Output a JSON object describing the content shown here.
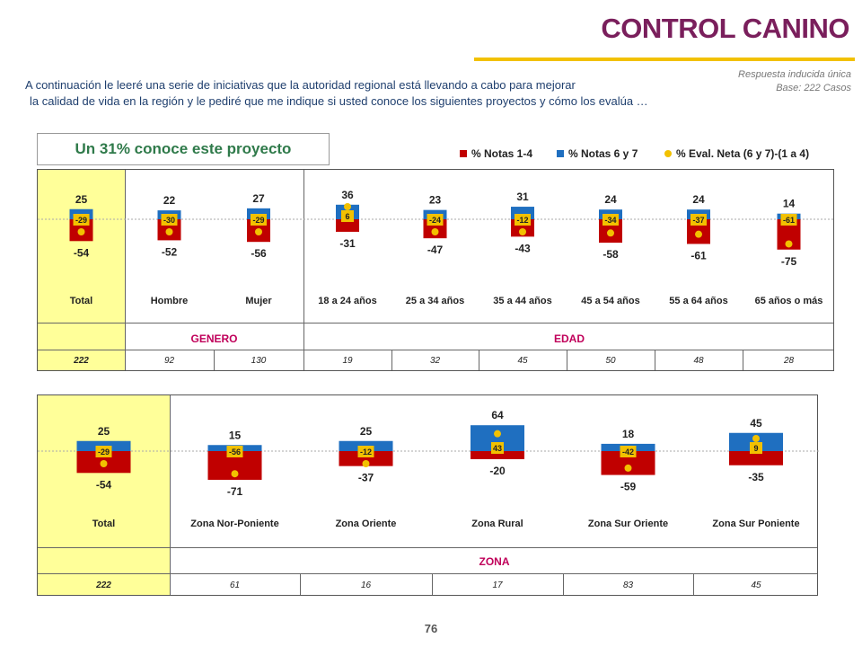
{
  "header": {
    "title": "CONTROL CANINO",
    "note_line1": "Respuesta inducida única",
    "note_line2": "Base: 222 Casos",
    "intro_line1": "A continuación le leeré una serie de iniciativas que la autoridad regional está llevando a cabo para mejorar",
    "intro_line2": "la calidad de vida en la región y le pediré que me indique si usted conoce los siguientes proyectos y cómo los evalúa …",
    "callout": "Un 31% conoce este proyecto",
    "page_number": "76"
  },
  "colors": {
    "negative": "#c00000",
    "positive": "#1f6fc0",
    "net": "#f2c100",
    "highlight": "#ffff99",
    "title": "#7a1f5c"
  },
  "legend": [
    {
      "label": "% Notas 1-4",
      "color": "#c00000",
      "shape": "square"
    },
    {
      "label": "% Notas 6 y 7",
      "color": "#1f6fc0",
      "shape": "square"
    },
    {
      "label": "% Eval. Neta (6 y 7)-(1 a 4)",
      "color": "#f2c100",
      "shape": "circle"
    }
  ],
  "chart_data": [
    {
      "type": "bar",
      "categories": [
        "Total",
        "Hombre",
        "Mujer",
        "18 a 24 años",
        "25 a 34 años",
        "35 a 44 años",
        "45 a 54 años",
        "55 a 64 años",
        "65 años o más"
      ],
      "series": [
        {
          "name": "% Notas 1-4",
          "values": [
            -54,
            -52,
            -56,
            -31,
            -47,
            -43,
            -58,
            -61,
            -75
          ]
        },
        {
          "name": "% Notas 6 y 7",
          "values": [
            25,
            22,
            27,
            36,
            23,
            31,
            24,
            24,
            14
          ]
        },
        {
          "name": "% Eval. Neta (6 y 7)-(1 a 4)",
          "values": [
            -29,
            -30,
            -29,
            6,
            -24,
            -12,
            -34,
            -37,
            -61
          ]
        }
      ],
      "groups": [
        {
          "label": "GENERO"
        },
        {
          "label": "EDAD"
        }
      ],
      "bases": [
        "222",
        "92",
        "130",
        "19",
        "32",
        "45",
        "50",
        "48",
        "28"
      ]
    },
    {
      "type": "bar",
      "categories": [
        "Total",
        "Zona Nor-Poniente",
        "Zona Oriente",
        "Zona Rural",
        "Zona Sur Oriente",
        "Zona Sur Poniente"
      ],
      "series": [
        {
          "name": "% Notas 1-4",
          "values": [
            -54,
            -71,
            -37,
            -20,
            -59,
            -35
          ]
        },
        {
          "name": "% Notas 6 y 7",
          "values": [
            25,
            15,
            25,
            64,
            18,
            45
          ]
        },
        {
          "name": "% Eval. Neta (6 y 7)-(1 a 4)",
          "values": [
            -29,
            -56,
            -12,
            43,
            -42,
            9
          ]
        }
      ],
      "groups": [
        {
          "label": "ZONA"
        }
      ],
      "bases": [
        "222",
        "61",
        "16",
        "17",
        "83",
        "45"
      ]
    }
  ]
}
